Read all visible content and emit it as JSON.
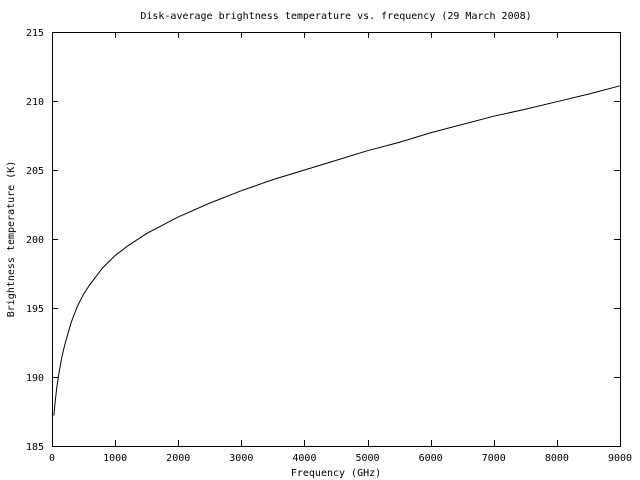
{
  "chart_data": {
    "type": "line",
    "title": "Disk-average brightness temperature vs. frequency (29 March 2008)",
    "xlabel": "Frequency (GHz)",
    "ylabel": "Brightness temperature (K)",
    "xlim": [
      0,
      9000
    ],
    "ylim": [
      185,
      215
    ],
    "xticks": [
      0,
      1000,
      2000,
      3000,
      4000,
      5000,
      6000,
      7000,
      8000,
      9000
    ],
    "yticks": [
      185,
      190,
      195,
      200,
      205,
      210,
      215
    ],
    "grid": false,
    "legend": "none",
    "series": [
      {
        "x": [
          30,
          50,
          75,
          100,
          150,
          200,
          300,
          400,
          500,
          600,
          700,
          800,
          1000,
          1200,
          1500,
          2000,
          2500,
          3000,
          3500,
          4000,
          4500,
          5000,
          5500,
          6000,
          6500,
          7000,
          7500,
          8000,
          8500,
          9000
        ],
        "y": [
          187.2,
          188.2,
          189.2,
          190.0,
          191.3,
          192.3,
          193.9,
          195.1,
          196.0,
          196.7,
          197.3,
          197.9,
          198.8,
          199.5,
          200.4,
          201.6,
          202.6,
          203.5,
          204.3,
          205.0,
          205.7,
          206.4,
          207.0,
          207.7,
          208.3,
          208.9,
          209.4,
          209.95,
          210.5,
          211.1
        ]
      }
    ]
  }
}
